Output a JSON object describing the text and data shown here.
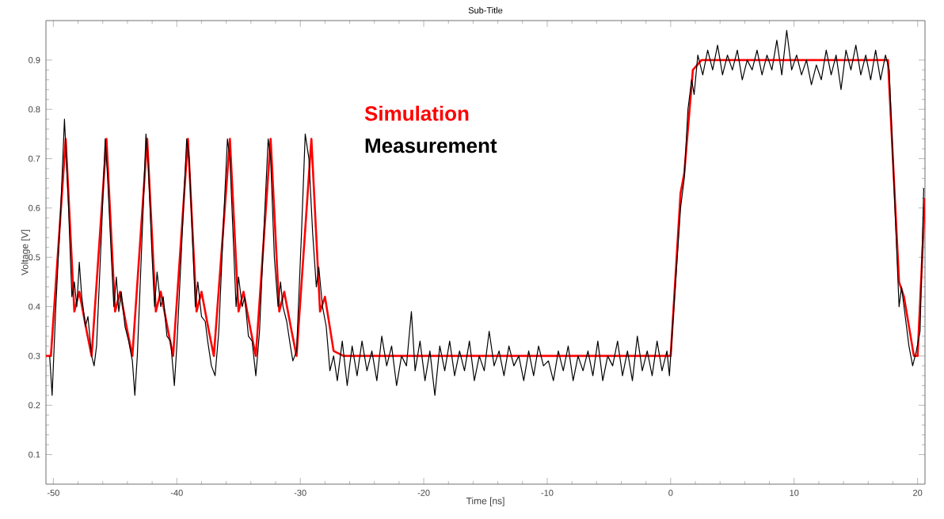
{
  "chart_data": {
    "type": "line",
    "title": "Sub-Title",
    "xlabel": "Time [ns]",
    "ylabel": "Voltage [V]",
    "xlim": [
      -50.6,
      20.6
    ],
    "ylim": [
      0.04,
      0.98
    ],
    "xticks": [
      -50,
      -40,
      -30,
      -20,
      -10,
      0,
      10,
      20
    ],
    "yticks": [
      0.1,
      0.2,
      0.3,
      0.4,
      0.5,
      0.6,
      0.7,
      0.8,
      0.9
    ],
    "legend": "top",
    "marker": "none",
    "line_style": "solid",
    "series": [
      {
        "name": "Simulation",
        "color": "#ff0000",
        "x": [
          -50.6,
          -50.2,
          -49.0,
          -48.3,
          -47.9,
          -47.3,
          -46.9,
          -45.7,
          -45.0,
          -44.6,
          -44.0,
          -43.6,
          -42.4,
          -41.7,
          -41.3,
          -40.7,
          -40.3,
          -39.1,
          -38.4,
          -38.0,
          -37.4,
          -37.0,
          -35.7,
          -35.0,
          -34.6,
          -34.0,
          -33.6,
          -32.4,
          -31.7,
          -31.3,
          -30.7,
          -30.3,
          -29.1,
          -28.4,
          -28.0,
          -27.3,
          -26.5,
          0.0,
          0.8,
          1.1,
          1.8,
          2.5,
          17.6,
          18.5,
          18.9,
          19.7,
          20.0,
          20.6
        ],
        "values": [
          0.3,
          0.3,
          0.74,
          0.39,
          0.43,
          0.35,
          0.3,
          0.74,
          0.39,
          0.43,
          0.35,
          0.3,
          0.74,
          0.39,
          0.43,
          0.35,
          0.3,
          0.74,
          0.39,
          0.43,
          0.35,
          0.3,
          0.74,
          0.39,
          0.43,
          0.35,
          0.3,
          0.74,
          0.39,
          0.43,
          0.35,
          0.3,
          0.74,
          0.39,
          0.42,
          0.31,
          0.3,
          0.3,
          0.63,
          0.67,
          0.88,
          0.9,
          0.9,
          0.45,
          0.42,
          0.3,
          0.3,
          0.62
        ]
      },
      {
        "name": "Measurement",
        "color": "#000000",
        "x": [
          -50.3,
          -50.1,
          -49.8,
          -49.4,
          -49.1,
          -48.8,
          -48.5,
          -48.3,
          -48.1,
          -47.9,
          -47.7,
          -47.4,
          -47.2,
          -46.9,
          -46.7,
          -46.5,
          -46.1,
          -45.8,
          -45.6,
          -45.3,
          -45.1,
          -44.9,
          -44.7,
          -44.5,
          -44.2,
          -43.9,
          -43.6,
          -43.4,
          -43.2,
          -42.8,
          -42.5,
          -42.3,
          -42.0,
          -41.8,
          -41.6,
          -41.3,
          -41.1,
          -40.8,
          -40.5,
          -40.2,
          -40.0,
          -39.5,
          -39.2,
          -39.0,
          -38.7,
          -38.5,
          -38.3,
          -38.0,
          -37.7,
          -37.5,
          -37.2,
          -36.9,
          -36.6,
          -36.2,
          -35.9,
          -35.7,
          -35.4,
          -35.2,
          -35.0,
          -34.7,
          -34.5,
          -34.2,
          -33.9,
          -33.6,
          -33.3,
          -32.9,
          -32.6,
          -32.4,
          -32.1,
          -31.8,
          -31.6,
          -31.4,
          -31.1,
          -30.8,
          -30.6,
          -30.3,
          -29.9,
          -29.6,
          -29.3,
          -29.0,
          -28.7,
          -28.5,
          -28.2,
          -27.9,
          -27.6,
          -27.3,
          -27.0,
          -26.6,
          -26.2,
          -25.8,
          -25.4,
          -25.0,
          -24.6,
          -24.2,
          -23.8,
          -23.4,
          -23.0,
          -22.6,
          -22.2,
          -21.8,
          -21.4,
          -21.0,
          -20.7,
          -20.3,
          -19.9,
          -19.5,
          -19.1,
          -18.7,
          -18.3,
          -17.9,
          -17.5,
          -17.1,
          -16.7,
          -16.3,
          -15.9,
          -15.5,
          -15.1,
          -14.7,
          -14.3,
          -13.9,
          -13.5,
          -13.1,
          -12.7,
          -12.3,
          -11.9,
          -11.5,
          -11.1,
          -10.7,
          -10.3,
          -9.9,
          -9.5,
          -9.1,
          -8.7,
          -8.3,
          -7.9,
          -7.5,
          -7.1,
          -6.7,
          -6.3,
          -5.9,
          -5.5,
          -5.1,
          -4.7,
          -4.3,
          -3.9,
          -3.5,
          -3.1,
          -2.7,
          -2.3,
          -1.9,
          -1.5,
          -1.1,
          -0.7,
          -0.3,
          -0.1,
          0.0,
          0.4,
          0.8,
          1.1,
          1.4,
          1.7,
          1.9,
          2.2,
          2.6,
          3.0,
          3.4,
          3.8,
          4.2,
          4.6,
          5.0,
          5.4,
          5.8,
          6.2,
          6.6,
          7.0,
          7.4,
          7.8,
          8.2,
          8.6,
          9.0,
          9.4,
          9.8,
          10.2,
          10.6,
          11.0,
          11.4,
          11.8,
          12.2,
          12.6,
          13.0,
          13.4,
          13.8,
          14.2,
          14.6,
          15.0,
          15.4,
          15.8,
          16.2,
          16.6,
          17.0,
          17.4,
          17.7,
          18.0,
          18.3,
          18.5,
          18.7,
          19.0,
          19.3,
          19.6,
          19.9,
          20.2,
          20.5
        ],
        "values": [
          0.3,
          0.22,
          0.4,
          0.6,
          0.78,
          0.62,
          0.42,
          0.45,
          0.4,
          0.49,
          0.42,
          0.36,
          0.38,
          0.3,
          0.28,
          0.32,
          0.55,
          0.74,
          0.66,
          0.5,
          0.4,
          0.46,
          0.39,
          0.43,
          0.36,
          0.33,
          0.29,
          0.22,
          0.3,
          0.55,
          0.75,
          0.68,
          0.5,
          0.4,
          0.47,
          0.4,
          0.42,
          0.34,
          0.33,
          0.24,
          0.32,
          0.58,
          0.74,
          0.7,
          0.52,
          0.4,
          0.45,
          0.38,
          0.37,
          0.33,
          0.28,
          0.26,
          0.35,
          0.58,
          0.74,
          0.7,
          0.52,
          0.4,
          0.46,
          0.4,
          0.42,
          0.34,
          0.33,
          0.26,
          0.35,
          0.58,
          0.74,
          0.7,
          0.5,
          0.4,
          0.45,
          0.4,
          0.37,
          0.32,
          0.29,
          0.31,
          0.55,
          0.75,
          0.7,
          0.55,
          0.44,
          0.48,
          0.4,
          0.36,
          0.27,
          0.3,
          0.25,
          0.33,
          0.24,
          0.32,
          0.26,
          0.33,
          0.27,
          0.31,
          0.25,
          0.34,
          0.28,
          0.32,
          0.24,
          0.3,
          0.28,
          0.39,
          0.27,
          0.33,
          0.25,
          0.31,
          0.22,
          0.32,
          0.27,
          0.33,
          0.26,
          0.31,
          0.27,
          0.33,
          0.25,
          0.3,
          0.27,
          0.35,
          0.28,
          0.31,
          0.26,
          0.32,
          0.28,
          0.3,
          0.25,
          0.31,
          0.26,
          0.32,
          0.28,
          0.29,
          0.25,
          0.31,
          0.27,
          0.32,
          0.25,
          0.3,
          0.27,
          0.31,
          0.26,
          0.33,
          0.25,
          0.3,
          0.28,
          0.33,
          0.26,
          0.31,
          0.25,
          0.34,
          0.27,
          0.31,
          0.26,
          0.33,
          0.27,
          0.31,
          0.26,
          0.3,
          0.45,
          0.6,
          0.66,
          0.8,
          0.86,
          0.83,
          0.91,
          0.87,
          0.92,
          0.88,
          0.93,
          0.87,
          0.91,
          0.88,
          0.92,
          0.86,
          0.9,
          0.88,
          0.92,
          0.87,
          0.91,
          0.88,
          0.94,
          0.87,
          0.96,
          0.88,
          0.91,
          0.87,
          0.9,
          0.85,
          0.89,
          0.86,
          0.92,
          0.87,
          0.91,
          0.84,
          0.92,
          0.88,
          0.93,
          0.87,
          0.91,
          0.86,
          0.92,
          0.86,
          0.91,
          0.88,
          0.7,
          0.52,
          0.4,
          0.44,
          0.38,
          0.32,
          0.28,
          0.31,
          0.35,
          0.64
        ]
      }
    ]
  }
}
